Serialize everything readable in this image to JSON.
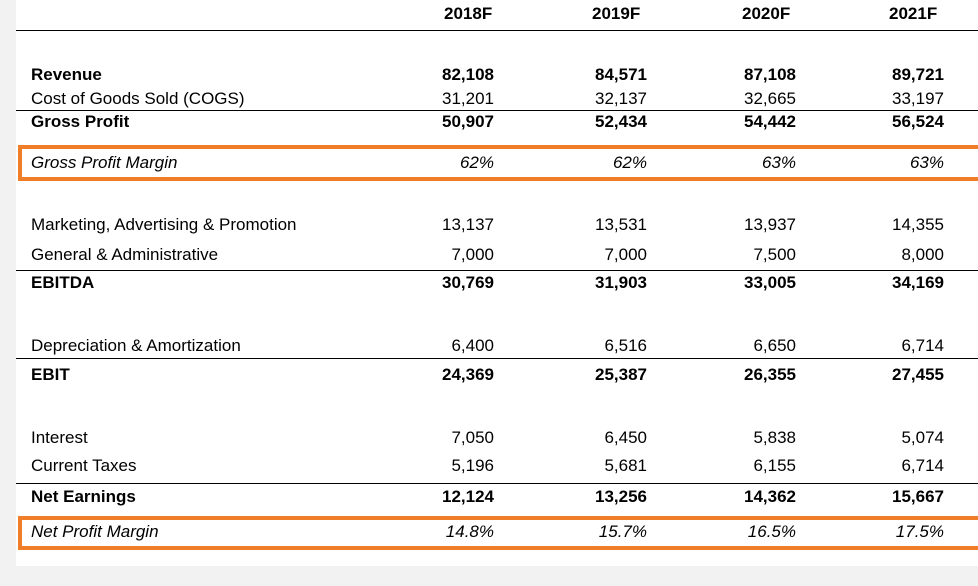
{
  "years": [
    "2018F",
    "2019F",
    "2020F",
    "2021F"
  ],
  "rows": [
    {
      "label": "Revenue",
      "values": [
        "82,108",
        "84,571",
        "87,108",
        "89,721"
      ]
    },
    {
      "label": "Cost of Goods Sold (COGS)",
      "values": [
        "31,201",
        "32,137",
        "32,665",
        "33,197"
      ]
    },
    {
      "label": "Gross Profit",
      "values": [
        "50,907",
        "52,434",
        "54,442",
        "56,524"
      ]
    },
    {
      "label": "Gross Profit Margin",
      "values": [
        "62%",
        "62%",
        "63%",
        "63%"
      ]
    },
    {
      "label": "Marketing, Advertising & Promotion",
      "values": [
        "13,137",
        "13,531",
        "13,937",
        "14,355"
      ]
    },
    {
      "label": "General & Administrative",
      "values": [
        "7,000",
        "7,000",
        "7,500",
        "8,000"
      ]
    },
    {
      "label": "EBITDA",
      "values": [
        "30,769",
        "31,903",
        "33,005",
        "34,169"
      ]
    },
    {
      "label": "Depreciation & Amortization",
      "values": [
        "6,400",
        "6,516",
        "6,650",
        "6,714"
      ]
    },
    {
      "label": "EBIT",
      "values": [
        "24,369",
        "25,387",
        "26,355",
        "27,455"
      ]
    },
    {
      "label": "Interest",
      "values": [
        "7,050",
        "6,450",
        "5,838",
        "5,074"
      ]
    },
    {
      "label": "Current Taxes",
      "values": [
        "5,196",
        "5,681",
        "6,155",
        "6,714"
      ]
    },
    {
      "label": "Net Earnings",
      "values": [
        "12,124",
        "13,256",
        "14,362",
        "15,667"
      ]
    },
    {
      "label": "Net Profit Margin",
      "values": [
        "14.8%",
        "15.7%",
        "16.5%",
        "17.5%"
      ]
    }
  ],
  "highlight_color": "#f07d28"
}
